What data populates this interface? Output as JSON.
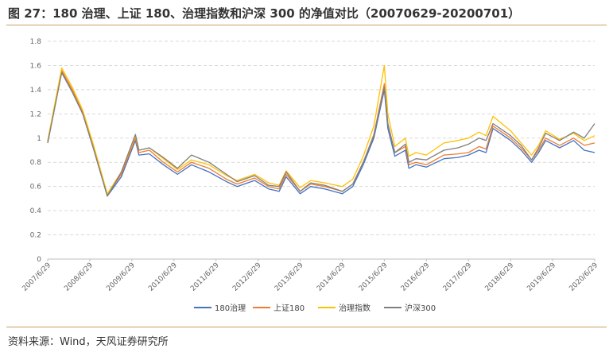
{
  "title": "图 27：180 治理、上证 180、治理指数和沪深 300 的净值对比（20070629-20200701）",
  "source": "资料来源：Wind，天风证券研究所",
  "colors": {
    "rule": "#c9a063",
    "grid": "#d9d9d9",
    "series": [
      "#4472c4",
      "#ed7d31",
      "#ffc000",
      "#7f7f7f"
    ]
  },
  "chart_data": {
    "type": "line",
    "x_tick_labels": [
      "2007/6/29",
      "2008/6/29",
      "2009/6/29",
      "2010/6/29",
      "2011/6/29",
      "2012/6/29",
      "2013/6/29",
      "2014/6/29",
      "2015/6/29",
      "2016/6/29",
      "2017/6/29",
      "2018/6/29",
      "2019/6/29",
      "2020/6/29"
    ],
    "y_ticks": [
      "0",
      "0.2",
      "0.4",
      "0.6",
      "0.8",
      "1",
      "1.2",
      "1.4",
      "1.6",
      "1.8"
    ],
    "ylim": [
      0,
      1.8
    ],
    "x": [
      "2007-06",
      "2007-10",
      "2008-01",
      "2008-04",
      "2008-07",
      "2008-11",
      "2009-03",
      "2009-07",
      "2009-08",
      "2009-11",
      "2010-03",
      "2010-07",
      "2010-11",
      "2011-04",
      "2011-09",
      "2011-12",
      "2012-05",
      "2012-09",
      "2012-12",
      "2013-02",
      "2013-06",
      "2013-09",
      "2014-01",
      "2014-06",
      "2014-09",
      "2014-12",
      "2015-03",
      "2015-06",
      "2015-07",
      "2015-09",
      "2015-12",
      "2016-01",
      "2016-03",
      "2016-06",
      "2016-11",
      "2017-03",
      "2017-06",
      "2017-09",
      "2017-11",
      "2018-01",
      "2018-06",
      "2018-09",
      "2018-12",
      "2019-02",
      "2019-04",
      "2019-08",
      "2019-12",
      "2020-03",
      "2020-06"
    ],
    "series": [
      {
        "name": "180治理",
        "values": [
          0.96,
          1.55,
          1.38,
          1.2,
          0.92,
          0.52,
          0.68,
          0.98,
          0.86,
          0.87,
          0.78,
          0.7,
          0.78,
          0.72,
          0.64,
          0.6,
          0.65,
          0.58,
          0.56,
          0.68,
          0.54,
          0.6,
          0.58,
          0.54,
          0.6,
          0.78,
          1.0,
          1.4,
          1.08,
          0.85,
          0.9,
          0.75,
          0.78,
          0.76,
          0.83,
          0.84,
          0.86,
          0.9,
          0.88,
          1.08,
          0.98,
          0.9,
          0.8,
          0.88,
          0.98,
          0.92,
          0.98,
          0.9,
          0.88
        ]
      },
      {
        "name": "上证180",
        "values": [
          0.97,
          1.56,
          1.4,
          1.22,
          0.93,
          0.53,
          0.7,
          1.0,
          0.88,
          0.9,
          0.8,
          0.72,
          0.8,
          0.75,
          0.66,
          0.62,
          0.67,
          0.6,
          0.58,
          0.7,
          0.56,
          0.62,
          0.6,
          0.56,
          0.62,
          0.8,
          1.03,
          1.45,
          1.12,
          0.88,
          0.93,
          0.78,
          0.8,
          0.78,
          0.86,
          0.87,
          0.88,
          0.93,
          0.91,
          1.1,
          1.0,
          0.92,
          0.82,
          0.9,
          1.0,
          0.94,
          1.0,
          0.94,
          0.96
        ]
      },
      {
        "name": "治理指数",
        "values": [
          0.98,
          1.58,
          1.42,
          1.23,
          0.95,
          0.54,
          0.72,
          1.02,
          0.9,
          0.92,
          0.83,
          0.74,
          0.82,
          0.78,
          0.69,
          0.65,
          0.7,
          0.63,
          0.61,
          0.73,
          0.59,
          0.65,
          0.63,
          0.6,
          0.66,
          0.85,
          1.1,
          1.6,
          1.2,
          0.93,
          1.0,
          0.85,
          0.88,
          0.86,
          0.96,
          0.98,
          1.0,
          1.05,
          1.02,
          1.18,
          1.06,
          0.96,
          0.86,
          0.94,
          1.06,
          0.99,
          1.04,
          0.98,
          1.02
        ]
      },
      {
        "name": "沪深300",
        "values": [
          0.96,
          1.54,
          1.38,
          1.2,
          0.92,
          0.52,
          0.72,
          1.03,
          0.9,
          0.92,
          0.84,
          0.75,
          0.86,
          0.8,
          0.7,
          0.64,
          0.69,
          0.61,
          0.6,
          0.72,
          0.56,
          0.63,
          0.61,
          0.56,
          0.62,
          0.8,
          1.02,
          1.42,
          1.12,
          0.88,
          0.95,
          0.8,
          0.83,
          0.82,
          0.9,
          0.92,
          0.95,
          1.0,
          0.98,
          1.12,
          1.02,
          0.94,
          0.82,
          0.92,
          1.04,
          0.98,
          1.05,
          1.0,
          1.12
        ]
      }
    ],
    "legend_position": "bottom",
    "grid": true
  }
}
